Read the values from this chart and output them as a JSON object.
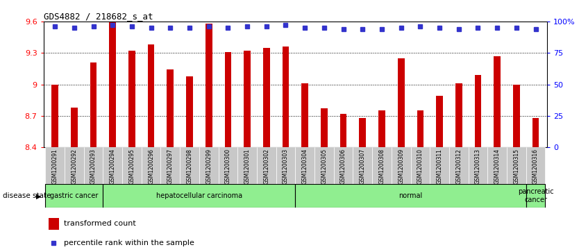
{
  "title": "GDS4882 / 218682_s_at",
  "samples": [
    "GSM1200291",
    "GSM1200292",
    "GSM1200293",
    "GSM1200294",
    "GSM1200295",
    "GSM1200296",
    "GSM1200297",
    "GSM1200298",
    "GSM1200299",
    "GSM1200300",
    "GSM1200301",
    "GSM1200302",
    "GSM1200303",
    "GSM1200304",
    "GSM1200305",
    "GSM1200306",
    "GSM1200307",
    "GSM1200308",
    "GSM1200309",
    "GSM1200310",
    "GSM1200311",
    "GSM1200312",
    "GSM1200313",
    "GSM1200314",
    "GSM1200315",
    "GSM1200316"
  ],
  "bar_values": [
    9.0,
    8.78,
    9.21,
    9.6,
    9.32,
    9.38,
    9.14,
    9.08,
    9.58,
    9.31,
    9.32,
    9.35,
    9.36,
    9.01,
    8.77,
    8.72,
    8.68,
    8.75,
    9.25,
    8.75,
    8.89,
    9.01,
    9.09,
    9.27,
    9.0,
    8.68
  ],
  "percentile_values": [
    96,
    95,
    96,
    97,
    96,
    95,
    95,
    95,
    96,
    95,
    96,
    96,
    97,
    95,
    95,
    94,
    94,
    94,
    95,
    96,
    95,
    94,
    95,
    95,
    95,
    94
  ],
  "bar_color": "#CC0000",
  "percentile_color": "#3333CC",
  "ylim_left": [
    8.4,
    9.6
  ],
  "ylim_right": [
    0,
    100
  ],
  "yticks_left": [
    8.4,
    8.7,
    9.0,
    9.3,
    9.6
  ],
  "ytick_labels_left": [
    "8.4",
    "8.7",
    "9",
    "9.3",
    "9.6"
  ],
  "yticks_right": [
    0,
    25,
    50,
    75,
    100
  ],
  "ytick_labels_right": [
    "0",
    "25",
    "50",
    "75",
    "100%"
  ],
  "grid_values": [
    8.7,
    9.0,
    9.3
  ],
  "group_boundaries": [
    [
      0,
      2,
      "gastric cancer"
    ],
    [
      3,
      12,
      "hepatocellular carcinoma"
    ],
    [
      13,
      24,
      "normal"
    ],
    [
      25,
      25,
      "pancreatic\ncancer"
    ]
  ],
  "group_color": "#90EE90",
  "disease_state_label": "disease state",
  "legend_bar_label": "transformed count",
  "legend_pct_label": "percentile rank within the sample",
  "bar_width": 0.35,
  "xtick_bg_color": "#C8C8C8"
}
